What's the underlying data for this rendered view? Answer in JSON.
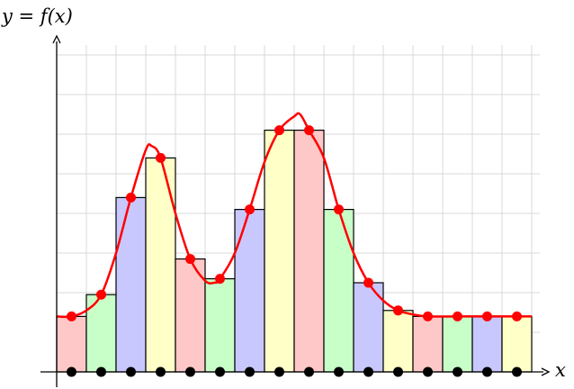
{
  "figure": {
    "y_axis_label": "y = f(x)",
    "x_axis_label": "x"
  },
  "colors": {
    "background": "#ffffff",
    "grid": "#d9d9d9",
    "axis": "#000000",
    "bar_outline": "#000000",
    "curve": "#ff0000",
    "sample_point": "#ff0000",
    "base_point": "#000000",
    "bar_palette": [
      "#ffc8c8",
      "#c8ffc8",
      "#c8c8ff",
      "#ffffc8"
    ]
  },
  "chart_data": {
    "type": "bar",
    "description_kind": "riemann-sum",
    "xlim": [
      0,
      16.5
    ],
    "ylim": [
      0,
      9
    ],
    "grid": true,
    "bar_width": 1,
    "bars": [
      {
        "x": 0,
        "height": 1.4,
        "color_index": 0
      },
      {
        "x": 1,
        "height": 1.95,
        "color_index": 1
      },
      {
        "x": 2,
        "height": 4.4,
        "color_index": 2
      },
      {
        "x": 3,
        "height": 5.4,
        "color_index": 3
      },
      {
        "x": 4,
        "height": 2.85,
        "color_index": 0
      },
      {
        "x": 5,
        "height": 2.35,
        "color_index": 1
      },
      {
        "x": 6,
        "height": 4.1,
        "color_index": 2
      },
      {
        "x": 7,
        "height": 6.1,
        "color_index": 3
      },
      {
        "x": 8,
        "height": 6.1,
        "color_index": 0
      },
      {
        "x": 9,
        "height": 4.1,
        "color_index": 1
      },
      {
        "x": 10,
        "height": 2.25,
        "color_index": 2
      },
      {
        "x": 11,
        "height": 1.55,
        "color_index": 3
      },
      {
        "x": 12,
        "height": 1.4,
        "color_index": 0
      },
      {
        "x": 13,
        "height": 1.4,
        "color_index": 1
      },
      {
        "x": 14,
        "height": 1.4,
        "color_index": 2
      },
      {
        "x": 15,
        "height": 1.4,
        "color_index": 3
      }
    ],
    "sample_points": [
      [
        0.5,
        1.4
      ],
      [
        1.5,
        1.95
      ],
      [
        2.5,
        4.4
      ],
      [
        3.5,
        5.4
      ],
      [
        4.5,
        2.85
      ],
      [
        5.5,
        2.35
      ],
      [
        6.5,
        4.1
      ],
      [
        7.5,
        6.1
      ],
      [
        8.5,
        6.1
      ],
      [
        9.5,
        4.1
      ],
      [
        10.5,
        2.25
      ],
      [
        11.5,
        1.55
      ],
      [
        12.5,
        1.4
      ],
      [
        13.5,
        1.4
      ],
      [
        14.5,
        1.4
      ],
      [
        15.5,
        1.4
      ]
    ],
    "base_points_x": [
      0.5,
      1.5,
      2.5,
      3.5,
      4.5,
      5.5,
      6.5,
      7.5,
      8.5,
      9.5,
      10.5,
      11.5,
      12.5,
      13.5,
      14.5,
      15.5
    ],
    "curve": [
      [
        0,
        1.4
      ],
      [
        0.5,
        1.4
      ],
      [
        1,
        1.55
      ],
      [
        1.5,
        1.95
      ],
      [
        2,
        3.0
      ],
      [
        2.5,
        4.4
      ],
      [
        3,
        5.6
      ],
      [
        3.2,
        5.7
      ],
      [
        3.5,
        5.4
      ],
      [
        4,
        4.0
      ],
      [
        4.5,
        2.85
      ],
      [
        5,
        2.3
      ],
      [
        5.3,
        2.25
      ],
      [
        5.5,
        2.35
      ],
      [
        6,
        3.0
      ],
      [
        6.5,
        4.1
      ],
      [
        7,
        5.3
      ],
      [
        7.5,
        6.1
      ],
      [
        8,
        6.45
      ],
      [
        8.2,
        6.5
      ],
      [
        8.5,
        6.1
      ],
      [
        9,
        5.4
      ],
      [
        9.5,
        4.1
      ],
      [
        10,
        3.0
      ],
      [
        10.5,
        2.25
      ],
      [
        11,
        1.8
      ],
      [
        11.5,
        1.55
      ],
      [
        12,
        1.45
      ],
      [
        12.5,
        1.4
      ],
      [
        13.5,
        1.4
      ],
      [
        14.5,
        1.4
      ],
      [
        15.5,
        1.4
      ],
      [
        16,
        1.4
      ]
    ]
  }
}
